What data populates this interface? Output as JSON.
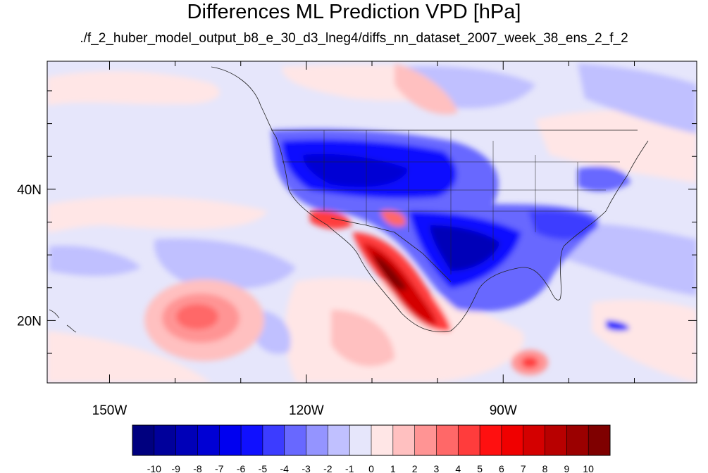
{
  "title": "Differences ML Prediction VPD [hPa]",
  "subtitle": "./f_2_huber_model_output_b8_e_30_d3_lneg4/diffs_nn_dataset_2007_week_38_ens_2_f_2",
  "map": {
    "lat_labels": [
      "40N",
      "20N"
    ],
    "lon_labels": [
      "150W",
      "120W",
      "90W"
    ],
    "lat_label_values": [
      40,
      20
    ],
    "lon_label_values": [
      -150,
      -120,
      -90
    ],
    "extent": {
      "lon_min": -159.5,
      "lon_max": -60.5,
      "lat_min": 10.5,
      "lat_max": 59.5
    }
  },
  "colorbar": {
    "labels": [
      "-10",
      "-9",
      "-8",
      "-7",
      "-6",
      "-5",
      "-4",
      "-3",
      "-2",
      "-1",
      "0",
      "1",
      "2",
      "3",
      "4",
      "5",
      "6",
      "7",
      "8",
      "9",
      "10"
    ],
    "colors": [
      "#00007f",
      "#00009b",
      "#0000b8",
      "#0000d4",
      "#0000f0",
      "#1010ff",
      "#3c3cff",
      "#6868ff",
      "#9494ff",
      "#c0c0ff",
      "#e6e6fb",
      "#ffe6e6",
      "#ffc0c0",
      "#ff9494",
      "#ff6868",
      "#ff3c3c",
      "#ff1010",
      "#f00000",
      "#d40000",
      "#b80000",
      "#9b0000",
      "#7f0000"
    ]
  }
}
